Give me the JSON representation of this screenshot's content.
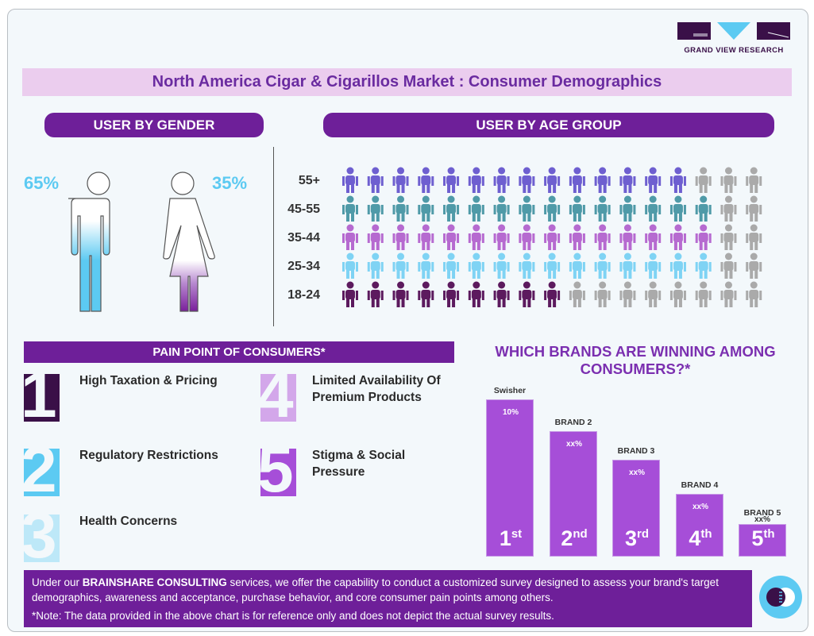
{
  "logo": {
    "text": "GRAND VIEW RESEARCH",
    "colors": {
      "dark": "#3a1048",
      "accent": "#5ccaf2"
    }
  },
  "title": "North America Cigar & Cigarillos Market : Consumer Demographics",
  "gender": {
    "header": "USER BY GENDER",
    "male_pct": "65%",
    "female_pct": "35%",
    "male_fill": 0.65,
    "female_fill": 0.35,
    "male_color": "#5ccaf2",
    "female_color": "#7a1f9c"
  },
  "age": {
    "header": "USER BY AGE GROUP",
    "rows": [
      {
        "label": "55+",
        "fill": 0.8,
        "color": "#6e5fd0",
        "icon": "elderly-person-icon"
      },
      {
        "label": "45-55",
        "fill": 0.87,
        "color": "#4f9aa8",
        "icon": "family-icon"
      },
      {
        "label": "35-44",
        "fill": 0.89,
        "color": "#b66ad0",
        "icon": "family-icon"
      },
      {
        "label": "25-34",
        "fill": 0.86,
        "color": "#7fd3f4",
        "icon": "couple-icon"
      },
      {
        "label": "18-24",
        "fill": 0.5,
        "color": "#5c1a5e",
        "icon": "running-person-icon"
      }
    ],
    "inactive_color": "#aaaaaa"
  },
  "pain": {
    "header": "PAIN POINT OF CONSUMERS*",
    "items": [
      {
        "num": "1",
        "text": "High Taxation & Pricing",
        "color": "#3a1048"
      },
      {
        "num": "2",
        "text": "Regulatory Restrictions",
        "color": "#5ccaf2"
      },
      {
        "num": "3",
        "text": "Health Concerns",
        "color": "#bde8f8"
      },
      {
        "num": "4",
        "text": "Limited Availability Of Premium Products",
        "color": "#d3a7ea"
      },
      {
        "num": "5",
        "text": "Stigma & Social Pressure",
        "color": "#a64ed8"
      }
    ]
  },
  "chart_data": {
    "type": "bar",
    "title": "WHICH BRANDS ARE WINNING AMONG CONSUMERS?*",
    "categories": [
      "Swisher",
      "BRAND 2",
      "BRAND 3",
      "BRAND 4",
      "BRAND 5"
    ],
    "value_labels": [
      "10%",
      "xx%",
      "xx%",
      "xx%",
      "xx%"
    ],
    "ranks": [
      {
        "n": "1",
        "s": "st"
      },
      {
        "n": "2",
        "s": "nd"
      },
      {
        "n": "3",
        "s": "rd"
      },
      {
        "n": "4",
        "s": "th"
      },
      {
        "n": "5",
        "s": "th"
      }
    ],
    "bar_color": "#a64ed8"
  },
  "footer": {
    "pre": "Under our ",
    "brand": "BRAINSHARE CONSULTING",
    "post": " services, we offer the capability to conduct a customized survey designed to assess your brand's target demographics, awareness and acceptance, purchase behavior, and core consumer pain points among others.",
    "note": "*Note: The data provided in the above chart is for reference only and does not depict the actual survey results."
  }
}
